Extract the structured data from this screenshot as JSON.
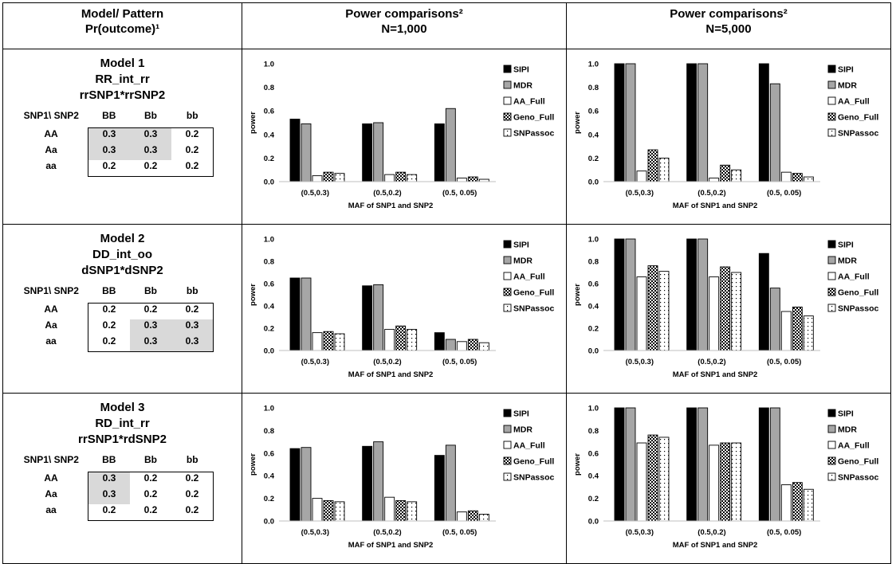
{
  "top_caption": "",
  "header": {
    "col1_line1": "Model/ Pattern",
    "col1_line2": "Pr(outcome)¹",
    "col2_line1": "Power comparisons²",
    "col2_line2": "N=1,000",
    "col3_line1": "Power comparisons²",
    "col3_line2": "N=5,000"
  },
  "models": [
    {
      "title": "Model 1",
      "name": "RR_int_rr",
      "formula": "rrSNP1*rrSNP2",
      "grid": {
        "corner": "SNP1\\ SNP2",
        "cols": [
          "BB",
          "Bb",
          "bb"
        ],
        "rows": [
          {
            "label": "AA",
            "values": [
              "0.3",
              "0.3",
              "0.2"
            ],
            "shaded": [
              true,
              true,
              false
            ]
          },
          {
            "label": "Aa",
            "values": [
              "0.3",
              "0.3",
              "0.2"
            ],
            "shaded": [
              true,
              true,
              false
            ]
          },
          {
            "label": "aa",
            "values": [
              "0.2",
              "0.2",
              "0.2"
            ],
            "shaded": [
              false,
              false,
              false
            ]
          }
        ]
      }
    },
    {
      "title": "Model 2",
      "name": "DD_int_oo",
      "formula": "dSNP1*dSNP2",
      "grid": {
        "corner": "SNP1\\ SNP2",
        "cols": [
          "BB",
          "Bb",
          "bb"
        ],
        "rows": [
          {
            "label": "AA",
            "values": [
              "0.2",
              "0.2",
              "0.2"
            ],
            "shaded": [
              false,
              false,
              false
            ]
          },
          {
            "label": "Aa",
            "values": [
              "0.2",
              "0.3",
              "0.3"
            ],
            "shaded": [
              false,
              true,
              true
            ]
          },
          {
            "label": "aa",
            "values": [
              "0.2",
              "0.3",
              "0.3"
            ],
            "shaded": [
              false,
              true,
              true
            ]
          }
        ]
      }
    },
    {
      "title": "Model 3",
      "name": "RD_int_rr",
      "formula": "rrSNP1*rdSNP2",
      "grid": {
        "corner": "SNP1\\ SNP2",
        "cols": [
          "BB",
          "Bb",
          "bb"
        ],
        "rows": [
          {
            "label": "AA",
            "values": [
              "0.3",
              "0.2",
              "0.2"
            ],
            "shaded": [
              true,
              false,
              false
            ]
          },
          {
            "label": "Aa",
            "values": [
              "0.3",
              "0.2",
              "0.2"
            ],
            "shaded": [
              true,
              false,
              false
            ]
          },
          {
            "label": "aa",
            "values": [
              "0.2",
              "0.2",
              "0.2"
            ],
            "shaded": [
              false,
              false,
              false
            ]
          }
        ]
      }
    }
  ],
  "chart_data": [
    {
      "type": "bar",
      "model": "Model 1",
      "sample_size": "N=1,000",
      "categories": [
        "(0.5,0.3)",
        "(0.5,0.2)",
        "(0.5, 0.05)"
      ],
      "xlabel": "MAF of SNP1 and SNP2",
      "ylabel": "power",
      "ylim": [
        0,
        1.0
      ],
      "yticks": [
        "0.0",
        "0.2",
        "0.4",
        "0.6",
        "0.8",
        "1.0"
      ],
      "legend_position": "right",
      "series": [
        {
          "name": "SIPI",
          "values": [
            0.53,
            0.49,
            0.49
          ]
        },
        {
          "name": "MDR",
          "values": [
            0.49,
            0.5,
            0.62
          ]
        },
        {
          "name": "AA_Full",
          "values": [
            0.05,
            0.06,
            0.03
          ]
        },
        {
          "name": "Geno_Full",
          "values": [
            0.08,
            0.08,
            0.04
          ]
        },
        {
          "name": "SNPassoc",
          "values": [
            0.07,
            0.06,
            0.02
          ]
        }
      ]
    },
    {
      "type": "bar",
      "model": "Model 1",
      "sample_size": "N=5,000",
      "categories": [
        "(0.5,0.3)",
        "(0.5,0.2)",
        "(0.5, 0.05)"
      ],
      "xlabel": "MAF of SNP1 and SNP2",
      "ylabel": "power",
      "ylim": [
        0,
        1.0
      ],
      "yticks": [
        "0.0",
        "0.2",
        "0.4",
        "0.6",
        "0.8",
        "1.0"
      ],
      "legend_position": "right",
      "series": [
        {
          "name": "SIPI",
          "values": [
            1.0,
            1.0,
            1.0
          ]
        },
        {
          "name": "MDR",
          "values": [
            1.0,
            1.0,
            0.83
          ]
        },
        {
          "name": "AA_Full",
          "values": [
            0.09,
            0.03,
            0.08
          ]
        },
        {
          "name": "Geno_Full",
          "values": [
            0.27,
            0.14,
            0.07
          ]
        },
        {
          "name": "SNPassoc",
          "values": [
            0.2,
            0.1,
            0.04
          ]
        }
      ]
    },
    {
      "type": "bar",
      "model": "Model 2",
      "sample_size": "N=1,000",
      "categories": [
        "(0.5,0.3)",
        "(0.5,0.2)",
        "(0.5, 0.05)"
      ],
      "xlabel": "MAF of SNP1 and SNP2",
      "ylabel": "power",
      "ylim": [
        0,
        1.0
      ],
      "yticks": [
        "0.0",
        "0.2",
        "0.4",
        "0.6",
        "0.8",
        "1.0"
      ],
      "legend_position": "right",
      "series": [
        {
          "name": "SIPI",
          "values": [
            0.65,
            0.58,
            0.16
          ]
        },
        {
          "name": "MDR",
          "values": [
            0.65,
            0.59,
            0.1
          ]
        },
        {
          "name": "AA_Full",
          "values": [
            0.16,
            0.19,
            0.08
          ]
        },
        {
          "name": "Geno_Full",
          "values": [
            0.17,
            0.22,
            0.1
          ]
        },
        {
          "name": "SNPassoc",
          "values": [
            0.15,
            0.19,
            0.07
          ]
        }
      ]
    },
    {
      "type": "bar",
      "model": "Model 2",
      "sample_size": "N=5,000",
      "categories": [
        "(0.5,0.3)",
        "(0.5,0.2)",
        "(0.5, 0.05)"
      ],
      "xlabel": "MAF of SNP1 and SNP2",
      "ylabel": "power",
      "ylim": [
        0,
        1.0
      ],
      "yticks": [
        "0.0",
        "0.2",
        "0.4",
        "0.6",
        "0.8",
        "1.0"
      ],
      "legend_position": "right",
      "series": [
        {
          "name": "SIPI",
          "values": [
            1.0,
            1.0,
            0.87
          ]
        },
        {
          "name": "MDR",
          "values": [
            1.0,
            1.0,
            0.56
          ]
        },
        {
          "name": "AA_Full",
          "values": [
            0.66,
            0.66,
            0.35
          ]
        },
        {
          "name": "Geno_Full",
          "values": [
            0.76,
            0.75,
            0.39
          ]
        },
        {
          "name": "SNPassoc",
          "values": [
            0.71,
            0.7,
            0.31
          ]
        }
      ]
    },
    {
      "type": "bar",
      "model": "Model 3",
      "sample_size": "N=1,000",
      "categories": [
        "(0.5,0.3)",
        "(0.5,0.2)",
        "(0.5, 0.05)"
      ],
      "xlabel": "MAF of SNP1 and SNP2",
      "ylabel": "power",
      "ylim": [
        0,
        1.0
      ],
      "yticks": [
        "0.0",
        "0.2",
        "0.4",
        "0.6",
        "0.8",
        "1.0"
      ],
      "legend_position": "right",
      "series": [
        {
          "name": "SIPI",
          "values": [
            0.64,
            0.66,
            0.58
          ]
        },
        {
          "name": "MDR",
          "values": [
            0.65,
            0.7,
            0.67
          ]
        },
        {
          "name": "AA_Full",
          "values": [
            0.2,
            0.21,
            0.08
          ]
        },
        {
          "name": "Geno_Full",
          "values": [
            0.18,
            0.18,
            0.09
          ]
        },
        {
          "name": "SNPassoc",
          "values": [
            0.17,
            0.17,
            0.06
          ]
        }
      ]
    },
    {
      "type": "bar",
      "model": "Model 3",
      "sample_size": "N=5,000",
      "categories": [
        "(0.5,0.3)",
        "(0.5,0.2)",
        "(0.5, 0.05)"
      ],
      "xlabel": "MAF of SNP1 and SNP2",
      "ylabel": "power",
      "ylim": [
        0,
        1.0
      ],
      "yticks": [
        "0.0",
        "0.2",
        "0.4",
        "0.6",
        "0.8",
        "1.0"
      ],
      "legend_position": "right",
      "series": [
        {
          "name": "SIPI",
          "values": [
            1.0,
            1.0,
            1.0
          ]
        },
        {
          "name": "MDR",
          "values": [
            1.0,
            1.0,
            1.0
          ]
        },
        {
          "name": "AA_Full",
          "values": [
            0.69,
            0.67,
            0.32
          ]
        },
        {
          "name": "Geno_Full",
          "values": [
            0.76,
            0.69,
            0.34
          ]
        },
        {
          "name": "SNPassoc",
          "values": [
            0.74,
            0.69,
            0.28
          ]
        }
      ]
    }
  ],
  "series_styles": [
    {
      "name": "SIPI",
      "fill": "#000000"
    },
    {
      "name": "MDR",
      "fill": "#a6a6a6"
    },
    {
      "name": "AA_Full",
      "fill": "#ffffff"
    },
    {
      "name": "Geno_Full",
      "fill": "pattern-checker"
    },
    {
      "name": "SNPassoc",
      "fill": "pattern-dots"
    }
  ]
}
